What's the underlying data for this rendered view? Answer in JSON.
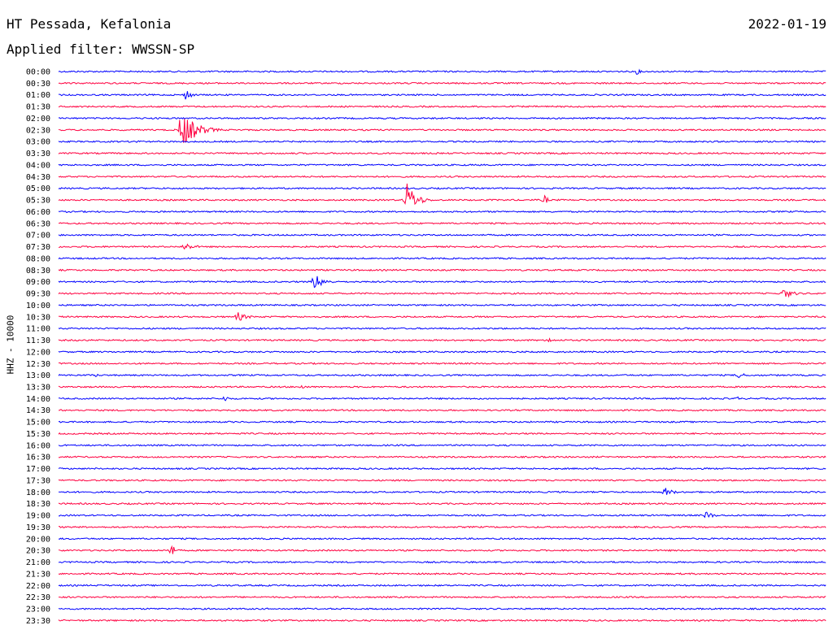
{
  "header": {
    "station": "HT Pessada, Kefalonia",
    "date": "2022-01-19",
    "filter": "Applied filter: WWSSN-SP"
  },
  "chart_data": {
    "type": "line",
    "ylabel": "HHZ - 10000",
    "row_labels": [
      "00:00",
      "00:30",
      "01:00",
      "01:30",
      "02:00",
      "02:30",
      "03:00",
      "03:30",
      "04:00",
      "04:30",
      "05:00",
      "05:30",
      "06:00",
      "06:30",
      "07:00",
      "07:30",
      "08:00",
      "08:30",
      "09:00",
      "09:30",
      "10:00",
      "10:30",
      "11:00",
      "11:30",
      "12:00",
      "12:30",
      "13:00",
      "13:30",
      "14:00",
      "14:30",
      "15:00",
      "15:30",
      "16:00",
      "16:30",
      "17:00",
      "17:30",
      "18:00",
      "18:30",
      "19:00",
      "19:30",
      "20:00",
      "20:30",
      "21:00",
      "21:30",
      "22:00",
      "22:30",
      "23:00",
      "23:30"
    ],
    "colors": [
      "#0000ff",
      "#ff0040"
    ],
    "x_range_minutes": [
      0,
      30
    ],
    "events": [
      {
        "row": 0,
        "minute": 22.6,
        "amplitude": 4,
        "duration_min": 0.4
      },
      {
        "row": 2,
        "minute": 5.0,
        "amplitude": 8,
        "duration_min": 0.5
      },
      {
        "row": 5,
        "minute": 4.8,
        "amplitude": 24,
        "duration_min": 1.6
      },
      {
        "row": 6,
        "minute": 3.1,
        "amplitude": 3,
        "duration_min": 0.4
      },
      {
        "row": 11,
        "minute": 13.6,
        "amplitude": 22,
        "duration_min": 1.0
      },
      {
        "row": 11,
        "minute": 19.0,
        "amplitude": 7,
        "duration_min": 0.3
      },
      {
        "row": 15,
        "minute": 4.9,
        "amplitude": 5,
        "duration_min": 1.2
      },
      {
        "row": 18,
        "minute": 10.0,
        "amplitude": 10,
        "duration_min": 1.1
      },
      {
        "row": 19,
        "minute": 28.3,
        "amplitude": 6,
        "duration_min": 1.3
      },
      {
        "row": 21,
        "minute": 7.0,
        "amplitude": 6,
        "duration_min": 1.0
      },
      {
        "row": 23,
        "minute": 19.2,
        "amplitude": 4,
        "duration_min": 0.4
      },
      {
        "row": 26,
        "minute": 1.4,
        "amplitude": 3,
        "duration_min": 0.5
      },
      {
        "row": 26,
        "minute": 26.6,
        "amplitude": 10,
        "duration_min": 0.3
      },
      {
        "row": 27,
        "minute": 9.5,
        "amplitude": 3,
        "duration_min": 0.6
      },
      {
        "row": 28,
        "minute": 6.5,
        "amplitude": 4,
        "duration_min": 0.5
      },
      {
        "row": 28,
        "minute": 26.5,
        "amplitude": 3,
        "duration_min": 0.4
      },
      {
        "row": 36,
        "minute": 23.7,
        "amplitude": 6,
        "duration_min": 0.9
      },
      {
        "row": 38,
        "minute": 25.3,
        "amplitude": 5,
        "duration_min": 0.9
      },
      {
        "row": 41,
        "minute": 4.4,
        "amplitude": 12,
        "duration_min": 0.3
      }
    ]
  }
}
